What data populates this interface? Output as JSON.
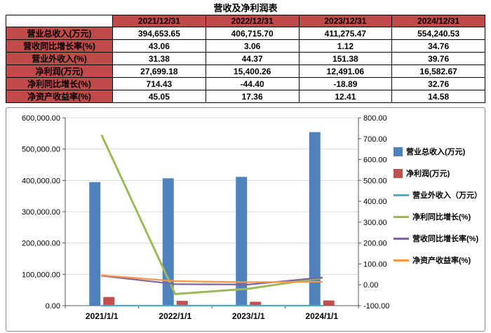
{
  "page": {
    "title": "营收及净利润表"
  },
  "colors": {
    "table_header_bg": "#BE4B48",
    "grid_line": "#D9D9D9",
    "axis_line": "#595959"
  },
  "table": {
    "corner": "",
    "columns": [
      "2021/12/31",
      "2022/12/31",
      "2023/12/31",
      "2024/12/31"
    ],
    "rows": [
      {
        "label": "营业总收入(万元)",
        "values": [
          "394,653.65",
          "406,715.70",
          "411,275.47",
          "554,240.53"
        ]
      },
      {
        "label": "营收同比增长率(%)",
        "values": [
          "43.06",
          "3.06",
          "1.12",
          "34.76"
        ]
      },
      {
        "label": "营业外收入(%)",
        "values": [
          "31.38",
          "44.37",
          "151.38",
          "39.76"
        ]
      },
      {
        "label": "净利润(万元)",
        "values": [
          "27,699.18",
          "15,400.26",
          "12,491.06",
          "16,582.67"
        ]
      },
      {
        "label": "净利同比增长(%)",
        "values": [
          "714.43",
          "-44.40",
          "-18.89",
          "32.76"
        ]
      },
      {
        "label": "净资产收益率(%)",
        "values": [
          "45.05",
          "17.36",
          "12.41",
          "14.58"
        ]
      }
    ]
  },
  "chart_data": {
    "type": "combo",
    "title": "",
    "categories": [
      "2021/1/1",
      "2022/1/1",
      "2023/1/1",
      "2024/1/1"
    ],
    "series": [
      {
        "name": "营业总收入(万元)",
        "kind": "bar",
        "axis": "left",
        "color": "#4F81BD",
        "values": [
          394653.65,
          406715.7,
          411275.47,
          554240.53
        ]
      },
      {
        "name": "净利润(万元)",
        "kind": "bar",
        "axis": "left",
        "color": "#C0504D",
        "values": [
          27699.18,
          15400.26,
          12491.06,
          16582.67
        ]
      },
      {
        "name": "营业外收入（万元）",
        "kind": "line",
        "axis": "left",
        "color": "#4BACC6",
        "values": [
          31.38,
          44.37,
          151.38,
          39.76
        ]
      },
      {
        "name": "净利同比增长(%)",
        "kind": "line",
        "axis": "right",
        "color": "#9BBB59",
        "values": [
          714.43,
          -44.4,
          -18.89,
          32.76
        ]
      },
      {
        "name": "营收同比增长率(%)",
        "kind": "line",
        "axis": "right",
        "color": "#8064A2",
        "values": [
          43.06,
          3.06,
          1.12,
          34.76
        ]
      },
      {
        "name": "净资产收益率(%)",
        "kind": "line",
        "axis": "right",
        "color": "#F79646",
        "values": [
          45.05,
          17.36,
          12.41,
          14.58
        ]
      }
    ],
    "left_axis": {
      "min": 0,
      "max": 600000,
      "step": 100000
    },
    "right_axis": {
      "min": -100,
      "max": 800,
      "step": 100
    },
    "legend_position": "right",
    "grid": true
  }
}
